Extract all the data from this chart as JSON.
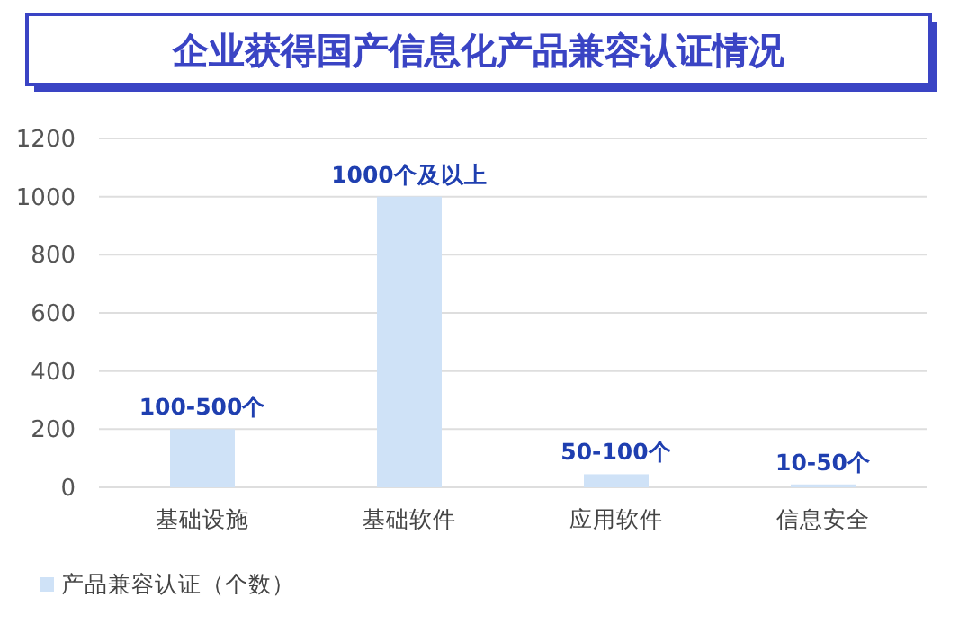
{
  "chart_data": {
    "type": "bar",
    "title": "企业获得国产信息化产品兼容认证情况",
    "categories": [
      "基础设施",
      "基础软件",
      "应用软件",
      "信息安全"
    ],
    "series": [
      {
        "name": "产品兼容认证（个数）",
        "color": "#cfe2f7",
        "values": [
          200,
          1000,
          45,
          10
        ],
        "value_labels": [
          "100-500个",
          "1000个及以上",
          "50-100个",
          "10-50个"
        ]
      }
    ],
    "ylim": [
      0,
      1200
    ],
    "yticks": [
      0,
      200,
      400,
      600,
      800,
      1000,
      1200
    ],
    "grid": "y",
    "legend": "bottom left"
  }
}
